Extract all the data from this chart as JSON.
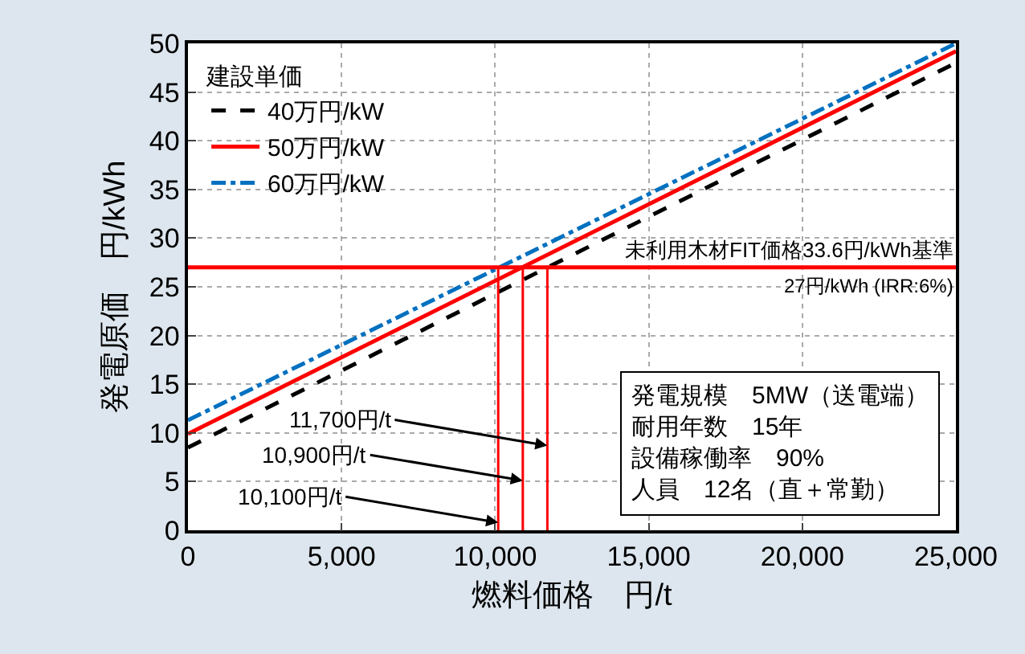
{
  "chart_data": {
    "type": "line",
    "xlabel": "燃料価格　円/t",
    "ylabel": "発電原価　円/kWh",
    "legend_title": "建設単価",
    "x": [
      0,
      25000
    ],
    "series": [
      {
        "name": "40万円/kW",
        "color": "#000000",
        "line_style": "dashed",
        "values": [
          8.5,
          48
        ]
      },
      {
        "name": "50万円/kW",
        "color": "#ff0000",
        "line_style": "solid",
        "values": [
          9.9,
          49.2
        ]
      },
      {
        "name": "60万円/kW",
        "color": "#0070c0",
        "line_style": "dashdot",
        "values": [
          11.3,
          50
        ]
      },
      {
        "color": "#ff0000",
        "line_style": "solid",
        "x": [
          10100,
          10100
        ],
        "values": [
          0,
          27
        ]
      },
      {
        "color": "#ff0000",
        "line_style": "solid",
        "x": [
          10900,
          10900
        ],
        "values": [
          0,
          27
        ]
      },
      {
        "color": "#ff0000",
        "line_style": "solid",
        "x": [
          11700,
          11700
        ],
        "values": [
          0,
          27
        ]
      }
    ],
    "ref_lines": [
      {
        "axis": "y",
        "value": 27,
        "label": "未利用木材FIT価格33.6円/kWh基準",
        "color": "#ff0000"
      }
    ],
    "annotations": [
      "27円/kWh (IRR:6%)",
      "発電規模　5MW（送電端）",
      "耐用年数　15年",
      "設備稼働率　90%",
      "人員　12名（直＋常勤）",
      {
        "text": "11,700円/t",
        "x": 11700,
        "y": 8.7
      },
      {
        "text": "10,900円/t",
        "x": 10900,
        "y": 5.1
      },
      {
        "text": "10,100円/t",
        "x": 10100,
        "y": 0.8
      }
    ],
    "xlim": [
      0,
      25000
    ],
    "xticks": [
      0,
      {
        "value": 5000,
        "label": "5,000"
      },
      {
        "value": 10000,
        "label": "10,000"
      },
      {
        "value": 15000,
        "label": "15,000"
      },
      {
        "value": 20000,
        "label": "20,000"
      },
      {
        "value": 25000,
        "label": "25,000"
      }
    ],
    "ylim": [
      0,
      50
    ],
    "yticks": [
      0,
      5,
      10,
      15,
      20,
      25,
      30,
      35,
      40,
      45,
      50
    ],
    "grid": true,
    "legend": "top left",
    "marker": "none"
  }
}
